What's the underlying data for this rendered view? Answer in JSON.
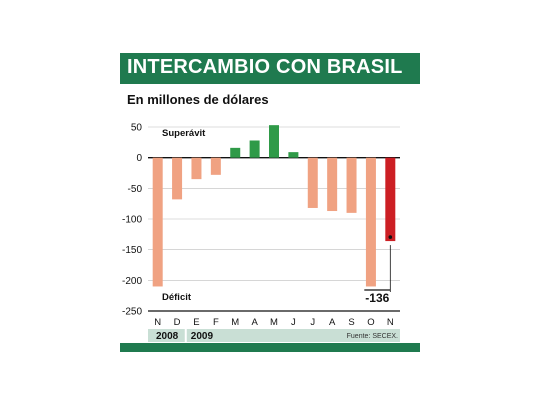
{
  "header": {
    "title": "INTERCAMBIO CON BRASIL",
    "subtitle": "En millones de dólares"
  },
  "chart_data": {
    "type": "bar",
    "title": "INTERCAMBIO CON BRASIL",
    "subtitle": "En millones de dólares",
    "categories": [
      "N",
      "D",
      "E",
      "F",
      "M",
      "A",
      "M",
      "J",
      "J",
      "A",
      "S",
      "O",
      "N"
    ],
    "values": [
      -210,
      -68,
      -35,
      -28,
      16,
      28,
      53,
      9,
      -82,
      -87,
      -90,
      -210,
      -136
    ],
    "ylim": [
      -250,
      50
    ],
    "yticks": [
      50,
      0,
      -50,
      -100,
      -150,
      -200,
      -250
    ],
    "grid": true,
    "annotations": {
      "superavit": "Superávit",
      "deficit": "Déficit",
      "last_value_label": "-136"
    },
    "years": [
      "2008",
      "2009"
    ],
    "source": "Fuente: SECEX.",
    "colors": {
      "deficit": "#f0a282",
      "superavit": "#2f9a48",
      "highlight": "#cc1f24",
      "brand": "#1f7a4f",
      "year_band": "#c9dfd5"
    }
  }
}
